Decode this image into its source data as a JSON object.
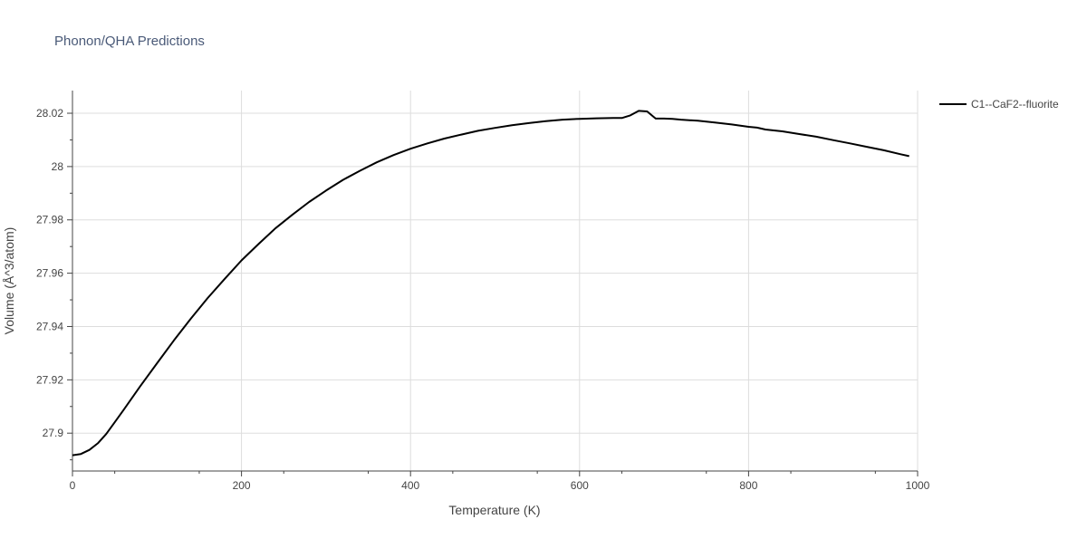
{
  "chart_data": {
    "type": "line",
    "title": "Phonon/QHA Predictions",
    "xlabel": "Temperature (K)",
    "ylabel": "Volume (Å^3/atom)",
    "xlim": [
      0,
      1000
    ],
    "ylim": [
      27.8858,
      28.0285
    ],
    "x_ticks": [
      0,
      200,
      400,
      600,
      800,
      1000
    ],
    "x_tick_labels": [
      "0",
      "200",
      "400",
      "600",
      "800",
      "1000"
    ],
    "y_ticks": [
      27.9,
      27.92,
      27.94,
      27.96,
      27.98,
      28.0,
      28.02
    ],
    "y_tick_labels": [
      "27.9",
      "27.92",
      "27.94",
      "27.96",
      "27.98",
      "28",
      "28.02"
    ],
    "grid": true,
    "legend_position": "top-right",
    "colors": {
      "line": "#000000",
      "grid": "#dddddd",
      "text": "#444444",
      "title": "#4a5a78"
    },
    "series": [
      {
        "name": "C1--CaF2--fluorite",
        "x": [
          0,
          10,
          20,
          30,
          40,
          60,
          80,
          100,
          120,
          140,
          160,
          180,
          200,
          220,
          240,
          260,
          280,
          300,
          320,
          340,
          360,
          380,
          400,
          420,
          440,
          460,
          480,
          500,
          520,
          540,
          560,
          580,
          600,
          620,
          640,
          650,
          660,
          670,
          680,
          690,
          700,
          710,
          720,
          740,
          760,
          780,
          800,
          810,
          820,
          840,
          860,
          880,
          900,
          920,
          940,
          960,
          980,
          990
        ],
        "y": [
          27.8917,
          27.8922,
          27.8937,
          27.8962,
          27.8997,
          27.9085,
          27.9175,
          27.9262,
          27.9348,
          27.9429,
          27.9507,
          27.9578,
          27.9648,
          27.9709,
          27.9768,
          27.9819,
          27.9867,
          27.991,
          27.995,
          27.9984,
          28.0016,
          28.0043,
          28.0067,
          28.0087,
          28.0105,
          28.012,
          28.0134,
          28.0145,
          28.0155,
          28.0163,
          28.017,
          28.0176,
          28.0179,
          28.0181,
          28.0182,
          28.0182,
          28.0192,
          28.0209,
          28.0207,
          28.018,
          28.018,
          28.0179,
          28.0176,
          28.0172,
          28.0165,
          28.0158,
          28.0149,
          28.0146,
          28.0139,
          28.0132,
          28.0122,
          28.0112,
          28.0099,
          28.0087,
          28.0074,
          28.0061,
          28.0046,
          28.0039
        ]
      }
    ]
  }
}
